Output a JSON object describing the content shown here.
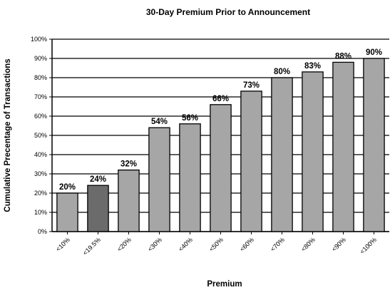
{
  "chart_data": {
    "type": "bar",
    "title": "30-Day Premium Prior to Announcement",
    "xlabel": "Premium",
    "ylabel": "Cumulative Precentage of Transactions",
    "categories": [
      "<10%",
      "<19.5%",
      "<20%",
      "<30%",
      "<40%",
      "<50%",
      "<60%",
      "<70%",
      "<80%",
      "<90%",
      "<100%"
    ],
    "values": [
      20,
      24,
      32,
      54,
      56,
      66,
      73,
      80,
      83,
      88,
      90
    ],
    "data_labels": [
      "20%",
      "24%",
      "32%",
      "54%",
      "56%",
      "66%",
      "73%",
      "80%",
      "83%",
      "88%",
      "90%"
    ],
    "ylim": [
      0,
      100
    ],
    "yticks": [
      "0%",
      "10%",
      "20%",
      "30%",
      "40%",
      "50%",
      "60%",
      "70%",
      "80%",
      "90%",
      "100%"
    ],
    "grid": true,
    "colors": {
      "bar": "#a6a6a6",
      "bar_highlight": "#6b6b6b",
      "outline": "#000000",
      "gridline": "#000000"
    }
  }
}
